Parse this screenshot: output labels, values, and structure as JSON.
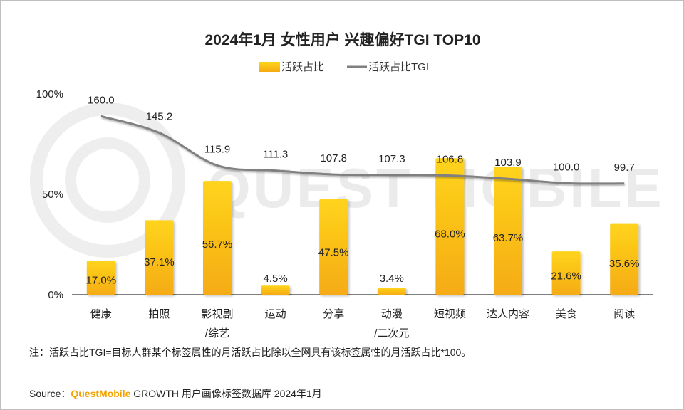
{
  "chart_data": {
    "type": "bar",
    "title": "2024年1月 女性用户 兴趣偏好TGI TOP10",
    "categories": [
      [
        "健康"
      ],
      [
        "拍照"
      ],
      [
        "影视剧",
        "/综艺"
      ],
      [
        "运动"
      ],
      [
        "分享"
      ],
      [
        "动漫",
        "/二次元"
      ],
      [
        "短视频"
      ],
      [
        "达人内容"
      ],
      [
        "美食"
      ],
      [
        "阅读"
      ]
    ],
    "series": [
      {
        "name": "活跃占比",
        "type": "bar",
        "axis": "left",
        "values": [
          17.0,
          37.1,
          56.7,
          4.5,
          47.5,
          3.4,
          68.0,
          63.7,
          21.6,
          35.6
        ],
        "labels": [
          "17.0%",
          "37.1%",
          "56.7%",
          "4.5%",
          "47.5%",
          "3.4%",
          "68.0%",
          "63.7%",
          "21.6%",
          "35.6%"
        ]
      },
      {
        "name": "活跃占比TGI",
        "type": "line",
        "axis": "secondary",
        "values": [
          160.0,
          145.2,
          115.9,
          111.3,
          107.8,
          107.3,
          106.8,
          103.9,
          100.0,
          99.7
        ],
        "labels": [
          "160.0",
          "145.2",
          "115.9",
          "111.3",
          "107.8",
          "107.3",
          "106.8",
          "103.9",
          "100.0",
          "99.7"
        ]
      }
    ],
    "y_ticks": [
      "100%",
      "50%",
      "0%"
    ],
    "ylim": [
      0,
      100
    ],
    "tgi_range": [
      0,
      180
    ],
    "legend_position": "top-center",
    "colors": {
      "bar": "#f7b515",
      "bar_top": "#ffd21a",
      "line": "#808080",
      "brand": "#f4a300"
    }
  },
  "note": "注：活跃占比TGI=目标人群某个标签属性的月活跃占比除以全网具有该标签属性的月活跃占比*100。",
  "source": {
    "prefix": "Source：",
    "brand": "QuestMobile",
    "rest": " GROWTH 用户画像标签数据库 2024年1月"
  },
  "watermark": "QUEST MOBILE"
}
